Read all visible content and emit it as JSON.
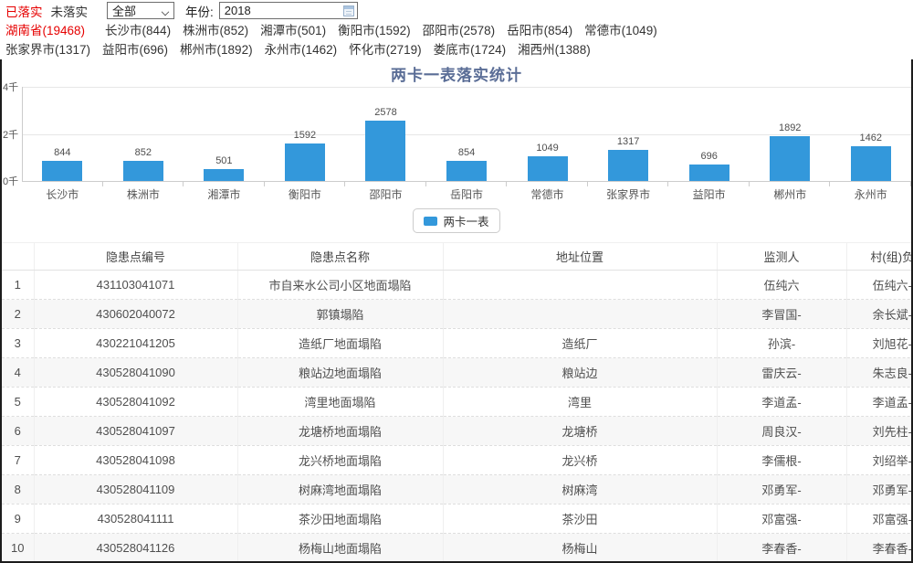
{
  "topbar": {
    "tab_implemented": "已落实",
    "tab_not_implemented": "未落实",
    "filter_selected": "全部",
    "year_label": "年份:",
    "year_value": "2018"
  },
  "links": {
    "province": "湖南省(19468)",
    "row1": [
      "长沙市(844)",
      "株洲市(852)",
      "湘潭市(501)",
      "衡阳市(1592)",
      "邵阳市(2578)",
      "岳阳市(854)",
      "常德市(1049)"
    ],
    "row2": [
      "张家界市(1317)",
      "益阳市(696)",
      "郴州市(1892)",
      "永州市(1462)",
      "怀化市(2719)",
      "娄底市(1724)",
      "湘西州(1388)"
    ]
  },
  "chart_data": {
    "type": "bar",
    "title": "两卡一表落实统计",
    "categories": [
      "长沙市",
      "株洲市",
      "湘潭市",
      "衡阳市",
      "邵阳市",
      "岳阳市",
      "常德市",
      "张家界市",
      "益阳市",
      "郴州市",
      "永州市"
    ],
    "values": [
      844,
      852,
      501,
      1592,
      2578,
      854,
      1049,
      1317,
      696,
      1892,
      1462
    ],
    "ylim": [
      0,
      4000
    ],
    "yticks": [
      "0千",
      "2千",
      "4千"
    ],
    "legend": [
      "两卡一表"
    ],
    "legend_position": "bottom",
    "grid": true,
    "bar_color": "#3398db",
    "xlabel": "",
    "ylabel": ""
  },
  "table": {
    "headers": [
      "",
      "隐患点编号",
      "隐患点名称",
      "地址位置",
      "监测人",
      "村(组)负"
    ],
    "rows": [
      {
        "idx": "1",
        "code": "431103041071",
        "name": "市自来水公司小区地面塌陷",
        "address": "",
        "monitor": "伍纯六",
        "village": "伍纯六-"
      },
      {
        "idx": "2",
        "code": "430602040072",
        "name": "郭镇塌陷",
        "address": "",
        "monitor": "李冒国-",
        "village": "余长斌-"
      },
      {
        "idx": "3",
        "code": "430221041205",
        "name": "造纸厂地面塌陷",
        "address": "造纸厂",
        "monitor": "孙滨-",
        "village": "刘旭花-"
      },
      {
        "idx": "4",
        "code": "430528041090",
        "name": "粮站边地面塌陷",
        "address": "粮站边",
        "monitor": "雷庆云-",
        "village": "朱志良-"
      },
      {
        "idx": "5",
        "code": "430528041092",
        "name": "湾里地面塌陷",
        "address": "湾里",
        "monitor": "李道孟-",
        "village": "李道孟-"
      },
      {
        "idx": "6",
        "code": "430528041097",
        "name": "龙塘桥地面塌陷",
        "address": "龙塘桥",
        "monitor": "周良汉-",
        "village": "刘先柱-"
      },
      {
        "idx": "7",
        "code": "430528041098",
        "name": "龙兴桥地面塌陷",
        "address": "龙兴桥",
        "monitor": "李儒根-",
        "village": "刘绍举-"
      },
      {
        "idx": "8",
        "code": "430528041109",
        "name": "树麻湾地面塌陷",
        "address": "树麻湾",
        "monitor": "邓勇军-",
        "village": "邓勇军-"
      },
      {
        "idx": "9",
        "code": "430528041111",
        "name": "茶沙田地面塌陷",
        "address": "茶沙田",
        "monitor": "邓富强-",
        "village": "邓富强-"
      },
      {
        "idx": "10",
        "code": "430528041126",
        "name": "杨梅山地面塌陷",
        "address": "杨梅山",
        "monitor": "李春香-",
        "village": "李春香-"
      }
    ]
  },
  "colors": {
    "accent_red": "#e60000",
    "bar_blue": "#3398db",
    "title_blue": "#5a6d96"
  }
}
